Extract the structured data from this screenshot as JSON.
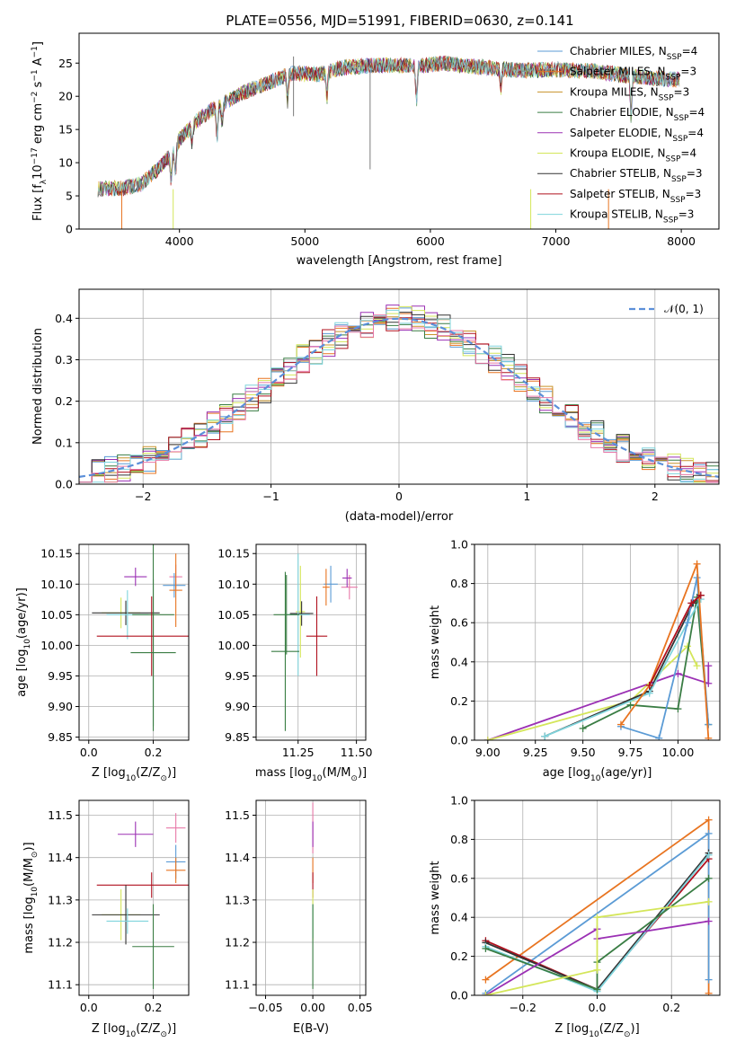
{
  "figure_title": "PLATE=0556, MJD=51991, FIBERID=0630, z=0.141",
  "colors": {
    "chabrier_miles": "#5b9bd5",
    "salpeter_miles": "#e87420",
    "kroupa_miles": "#c8922a",
    "chabrier_elodie": "#3a7d44",
    "salpeter_elodie": "#9b30b4",
    "kroupa_elodie": "#d4e65a",
    "chabrier_stelib": "#333333",
    "salpeter_stelib": "#b0101e",
    "kroupa_stelib": "#7fd4dc",
    "pink": "#e879a8",
    "gauss": "#5b8fd9"
  },
  "legend_labels": {
    "models": [
      "Chabrier MILES, N",
      "Salpeter MILES, N",
      "Kroupa MILES, N",
      "Chabrier ELODIE, N",
      "Salpeter ELODIE, N",
      "Kroupa ELODIE, N",
      "Chabrier STELIB, N",
      "Salpeter STELIB, N",
      "Kroupa STELIB, N"
    ],
    "subscript": "SSP",
    "counts": [
      "=4",
      "=3",
      "=3",
      "=4",
      "=4",
      "=4",
      "=3",
      "=3",
      "=3"
    ]
  },
  "chart_data": [
    {
      "type": "line",
      "name": "spectrum",
      "ylabel": "Flux [f",
      "ylabel_sub": "λ",
      "ylabel_rest": "10",
      "ylabel_exp": "−17",
      "ylabel_units": " erg cm",
      "ylabel_exp2": "−2",
      "ylabel_mid": " s",
      "ylabel_exp3": "−1",
      "ylabel_end": " A",
      "ylabel_exp4": "−1",
      "ylabel_close": "]",
      "xlabel": "wavelength [Angstrom, rest frame]",
      "xlim": [
        3200,
        8300
      ],
      "ylim": [
        0,
        29.5
      ],
      "xticks": [
        4000,
        5000,
        6000,
        7000,
        8000
      ],
      "yticks": [
        0,
        5,
        10,
        15,
        20,
        25
      ],
      "x_range": [
        3350,
        7990
      ],
      "continuum": [
        [
          3350,
          6.0
        ],
        [
          3550,
          6.2
        ],
        [
          3700,
          6.8
        ],
        [
          3850,
          9.5
        ],
        [
          3950,
          11.5
        ],
        [
          4000,
          13.5
        ],
        [
          4150,
          16.5
        ],
        [
          4300,
          18.5
        ],
        [
          4500,
          20.5
        ],
        [
          4700,
          22.0
        ],
        [
          4900,
          23.5
        ],
        [
          5100,
          23.3
        ],
        [
          5300,
          24.3
        ],
        [
          5500,
          24.6
        ],
        [
          5700,
          24.7
        ],
        [
          5900,
          24.5
        ],
        [
          6100,
          25.0
        ],
        [
          6400,
          24.4
        ],
        [
          6700,
          23.9
        ],
        [
          7000,
          24.0
        ],
        [
          7300,
          23.8
        ],
        [
          7600,
          23.0
        ],
        [
          7990,
          22.5
        ]
      ]
    },
    {
      "type": "line",
      "name": "residual_distribution",
      "ylabel": "Normed distribution",
      "xlabel": "(data-model)/error",
      "xlim": [
        -2.5,
        2.5
      ],
      "ylim": [
        0,
        0.47
      ],
      "xticks": [
        -2,
        -1,
        0,
        1,
        2
      ],
      "yticks": [
        0.0,
        0.1,
        0.2,
        0.3,
        0.4
      ],
      "legend": "𝒩(0, 1)",
      "bin_width": 0.1
    },
    {
      "type": "scatter",
      "name": "age_vs_Z",
      "ylabel": "age  [log",
      "ylabel_sub": "10",
      "ylabel_rest": "(age/yr)]",
      "xlabel": "Z [log",
      "xlabel_sub": "10",
      "xlabel_rest": "(Z/Z",
      "xlabel_sun": "⊙",
      "xlabel_close": ")]",
      "xlim": [
        -0.03,
        0.31
      ],
      "ylim": [
        9.845,
        10.165
      ],
      "xticks": [
        0.0,
        0.2
      ],
      "yticks": [
        9.85,
        9.9,
        9.95,
        10.0,
        10.05,
        10.1,
        10.15
      ],
      "points": [
        {
          "c": "pink",
          "x": 0.27,
          "y": 10.112,
          "xe": 0.02,
          "ye": 0.02
        },
        {
          "c": "salpeter_elodie",
          "x": 0.145,
          "y": 10.112,
          "xe": 0.035,
          "ye": 0.015
        },
        {
          "c": "chabrier_miles",
          "x": 0.265,
          "y": 10.098,
          "xe": 0.035,
          "ye": 0.02
        },
        {
          "c": "salpeter_miles",
          "x": 0.27,
          "y": 10.09,
          "xe": 0.02,
          "ye": 0.06
        },
        {
          "c": "kroupa_elodie",
          "x": 0.1,
          "y": 10.053,
          "xe": 0.06,
          "ye": 0.025
        },
        {
          "c": "chabrier_stelib",
          "x": 0.115,
          "y": 10.053,
          "xe": 0.105,
          "ye": 0.02
        },
        {
          "c": "kroupa_stelib",
          "x": 0.12,
          "y": 10.05,
          "xe": 0.065,
          "ye": 0.04
        },
        {
          "c": "chabrier_elodie",
          "x": 0.2,
          "y": 10.05,
          "xe": 0.065,
          "ye": 0.19
        },
        {
          "c": "salpeter_stelib",
          "x": 0.195,
          "y": 10.015,
          "xe": 0.17,
          "ye": 0.065
        },
        {
          "c": "chabrier_elodie",
          "x": 0.2,
          "y": 9.988,
          "xe": 0.07,
          "ye": 0.12
        }
      ]
    },
    {
      "type": "scatter",
      "name": "age_vs_mass",
      "xlabel": "mass [log",
      "xlabel_sub": "10",
      "xlabel_rest": "(M/M",
      "xlabel_sun": "⊙",
      "xlabel_close": ")]",
      "xlim": [
        11.07,
        11.54
      ],
      "ylim": [
        9.845,
        10.165
      ],
      "xticks": [
        11.25,
        11.5
      ],
      "yticks": [
        9.85,
        9.9,
        9.95,
        10.0,
        10.05,
        10.1,
        10.15
      ],
      "points": [
        {
          "c": "pink",
          "x": 11.47,
          "y": 10.095,
          "xe": 0.035,
          "ye": 0.02
        },
        {
          "c": "salpeter_elodie",
          "x": 11.46,
          "y": 10.11,
          "xe": 0.02,
          "ye": 0.015
        },
        {
          "c": "chabrier_miles",
          "x": 11.39,
          "y": 10.1,
          "xe": 0.03,
          "ye": 0.03
        },
        {
          "c": "salpeter_miles",
          "x": 11.37,
          "y": 10.095,
          "xe": 0.015,
          "ye": 0.03
        },
        {
          "c": "kroupa_elodie",
          "x": 11.26,
          "y": 10.055,
          "xe": 0.02,
          "ye": 0.075
        },
        {
          "c": "chabrier_stelib",
          "x": 11.265,
          "y": 10.052,
          "xe": 0.05,
          "ye": 0.02
        },
        {
          "c": "kroupa_stelib",
          "x": 11.25,
          "y": 10.05,
          "xe": 0.05,
          "ye": 0.1
        },
        {
          "c": "chabrier_elodie",
          "x": 11.2,
          "y": 10.05,
          "xe": 0.055,
          "ye": 0.065
        },
        {
          "c": "salpeter_stelib",
          "x": 11.33,
          "y": 10.015,
          "xe": 0.045,
          "ye": 0.065
        },
        {
          "c": "chabrier_elodie",
          "x": 11.195,
          "y": 9.99,
          "xe": 0.06,
          "ye": 0.13
        }
      ]
    },
    {
      "type": "line",
      "name": "mass_weight_vs_age",
      "ylabel": "mass weight",
      "xlabel": "age  [log",
      "xlabel_sub": "10",
      "xlabel_rest": "(age/yr)]",
      "xlim": [
        8.93,
        10.22
      ],
      "ylim": [
        0,
        1.0
      ],
      "xticks": [
        9.0,
        9.25,
        9.5,
        9.75,
        10.0
      ],
      "yticks": [
        0.0,
        0.2,
        0.4,
        0.6,
        0.8,
        1.0
      ],
      "series": [
        {
          "c": "salpeter_elodie",
          "pts": [
            [
              9.0,
              0.0
            ],
            [
              10.0,
              0.34
            ],
            [
              10.16,
              0.29
            ],
            [
              10.16,
              0.38
            ]
          ]
        },
        {
          "c": "kroupa_elodie",
          "pts": [
            [
              9.0,
              0.0
            ],
            [
              9.75,
              0.2
            ],
            [
              10.05,
              0.48
            ],
            [
              10.1,
              0.38
            ]
          ]
        },
        {
          "c": "chabrier_elodie",
          "pts": [
            [
              9.5,
              0.06
            ],
            [
              9.75,
              0.18
            ],
            [
              10.0,
              0.16
            ],
            [
              10.1,
              0.73
            ],
            [
              10.16,
              0.08
            ]
          ]
        },
        {
          "c": "chabrier_stelib",
          "pts": [
            [
              9.3,
              0.02
            ],
            [
              9.85,
              0.25
            ],
            [
              10.08,
              0.7
            ],
            [
              10.12,
              0.74
            ]
          ]
        },
        {
          "c": "kroupa_stelib",
          "pts": [
            [
              9.3,
              0.02
            ],
            [
              9.85,
              0.24
            ],
            [
              10.05,
              0.6
            ],
            [
              10.12,
              0.72
            ]
          ]
        },
        {
          "c": "chabrier_miles",
          "pts": [
            [
              9.7,
              0.07
            ],
            [
              9.9,
              0.01
            ],
            [
              10.05,
              0.6
            ],
            [
              10.1,
              0.83
            ],
            [
              10.16,
              0.08
            ]
          ]
        },
        {
          "c": "salpeter_miles",
          "pts": [
            [
              9.7,
              0.08
            ],
            [
              9.85,
              0.28
            ],
            [
              10.1,
              0.9
            ],
            [
              10.16,
              0.01
            ]
          ]
        },
        {
          "c": "salpeter_stelib",
          "pts": [
            [
              9.85,
              0.28
            ],
            [
              10.07,
              0.7
            ],
            [
              10.12,
              0.74
            ]
          ]
        }
      ]
    },
    {
      "type": "scatter",
      "name": "mass_vs_Z",
      "ylabel": "mass [log",
      "ylabel_sub": "10",
      "ylabel_rest": "(M/M",
      "ylabel_sun": "⊙",
      "ylabel_close": ")]",
      "xlabel": "Z [log",
      "xlabel_sub": "10",
      "xlabel_rest": "(Z/Z",
      "xlabel_sun": "⊙",
      "xlabel_close": ")]",
      "xlim": [
        -0.03,
        0.31
      ],
      "ylim": [
        11.075,
        11.535
      ],
      "xticks": [
        0.0,
        0.2
      ],
      "yticks": [
        11.1,
        11.2,
        11.3,
        11.4,
        11.5
      ],
      "points": [
        {
          "c": "pink",
          "x": 0.27,
          "y": 11.47,
          "xe": 0.03,
          "ye": 0.035
        },
        {
          "c": "salpeter_elodie",
          "x": 0.145,
          "y": 11.455,
          "xe": 0.055,
          "ye": 0.03
        },
        {
          "c": "chabrier_miles",
          "x": 0.27,
          "y": 11.39,
          "xe": 0.03,
          "ye": 0.04
        },
        {
          "c": "salpeter_miles",
          "x": 0.27,
          "y": 11.37,
          "xe": 0.03,
          "ye": 0.03
        },
        {
          "c": "salpeter_stelib",
          "x": 0.195,
          "y": 11.335,
          "xe": 0.17,
          "ye": 0.03
        },
        {
          "c": "kroupa_elodie",
          "x": 0.1,
          "y": 11.265,
          "xe": 0.06,
          "ye": 0.06
        },
        {
          "c": "chabrier_stelib",
          "x": 0.115,
          "y": 11.265,
          "xe": 0.105,
          "ye": 0.07
        },
        {
          "c": "kroupa_stelib",
          "x": 0.12,
          "y": 11.25,
          "xe": 0.065,
          "ye": 0.03
        },
        {
          "c": "chabrier_elodie",
          "x": 0.2,
          "y": 11.19,
          "xe": 0.065,
          "ye": 0.1
        }
      ]
    },
    {
      "type": "scatter",
      "name": "mass_vs_ebv",
      "xlabel": "E(B-V)",
      "xlim": [
        -0.06,
        0.056
      ],
      "ylim": [
        11.075,
        11.535
      ],
      "xticks": [
        -0.05,
        0.0,
        0.05
      ],
      "xtick_labels": [
        "−0.05",
        "0.00",
        "0.05"
      ],
      "yticks": [
        11.1,
        11.2,
        11.3,
        11.4,
        11.5
      ],
      "points": [
        {
          "c": "pink",
          "x": 0.0,
          "y": 11.47,
          "xe": 0.0,
          "ye": 0.06
        },
        {
          "c": "salpeter_elodie",
          "x": 0.0,
          "y": 11.455,
          "xe": 0.0,
          "ye": 0.03
        },
        {
          "c": "salpeter_miles",
          "x": 0.0,
          "y": 11.37,
          "xe": 0.0,
          "ye": 0.03
        },
        {
          "c": "salpeter_stelib",
          "x": 0.0,
          "y": 11.335,
          "xe": 0.0,
          "ye": 0.03
        },
        {
          "c": "kroupa_elodie",
          "x": 0.0,
          "y": 11.265,
          "xe": 0.0,
          "ye": 0.06
        },
        {
          "c": "kroupa_stelib",
          "x": 0.0,
          "y": 11.25,
          "xe": 0.0,
          "ye": 0.04
        },
        {
          "c": "chabrier_elodie",
          "x": 0.0,
          "y": 11.19,
          "xe": 0.0,
          "ye": 0.1
        }
      ]
    },
    {
      "type": "line",
      "name": "mass_weight_vs_Z",
      "ylabel": "mass weight",
      "xlabel": "Z [log",
      "xlabel_sub": "10",
      "xlabel_rest": "(Z/Z",
      "xlabel_sun": "⊙",
      "xlabel_close": ")]",
      "xlim": [
        -0.33,
        0.33
      ],
      "ylim": [
        0,
        1.0
      ],
      "xticks": [
        -0.2,
        0.0,
        0.2
      ],
      "xtick_labels": [
        "−0.2",
        "0.0",
        "0.2"
      ],
      "yticks": [
        0.0,
        0.2,
        0.4,
        0.6,
        0.8,
        1.0
      ],
      "series": [
        {
          "c": "salpeter_miles",
          "pts": [
            [
              -0.3,
              0.08
            ],
            [
              0.3,
              0.9
            ],
            [
              0.3,
              0.01
            ]
          ]
        },
        {
          "c": "chabrier_miles",
          "pts": [
            [
              -0.3,
              0.01
            ],
            [
              0.3,
              0.83
            ],
            [
              0.3,
              0.08
            ]
          ]
        },
        {
          "c": "salpeter_stelib",
          "pts": [
            [
              -0.3,
              0.28
            ],
            [
              0.0,
              0.03
            ],
            [
              0.3,
              0.7
            ]
          ]
        },
        {
          "c": "chabrier_stelib",
          "pts": [
            [
              -0.3,
              0.27
            ],
            [
              0.0,
              0.03
            ],
            [
              0.3,
              0.73
            ]
          ]
        },
        {
          "c": "kroupa_stelib",
          "pts": [
            [
              -0.3,
              0.25
            ],
            [
              0.0,
              0.02
            ],
            [
              0.3,
              0.72
            ]
          ]
        },
        {
          "c": "chabrier_elodie",
          "pts": [
            [
              -0.3,
              0.24
            ],
            [
              0.0,
              0.03
            ],
            [
              0.0,
              0.17
            ],
            [
              0.3,
              0.6
            ]
          ]
        },
        {
          "c": "salpeter_elodie",
          "pts": [
            [
              -0.3,
              0.0
            ],
            [
              0.0,
              0.34
            ],
            [
              0.0,
              0.29
            ],
            [
              0.3,
              0.38
            ]
          ]
        },
        {
          "c": "kroupa_elodie",
          "pts": [
            [
              -0.3,
              0.0
            ],
            [
              0.0,
              0.13
            ],
            [
              0.0,
              0.4
            ],
            [
              0.3,
              0.48
            ]
          ]
        }
      ]
    }
  ]
}
